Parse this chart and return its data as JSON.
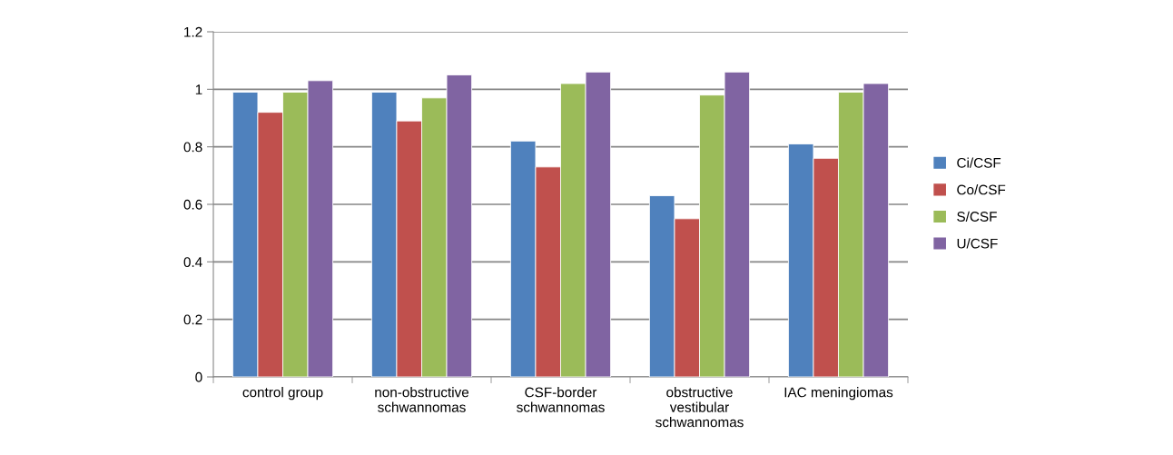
{
  "chart_data": {
    "type": "bar",
    "categories": [
      "control group",
      "non-obstructive\nschwannomas",
      "CSF-border\nschwannomas",
      "obstructive\nvestibular\nschwannomas",
      "IAC meningiomas"
    ],
    "series": [
      {
        "name": "Ci/CSF",
        "color": "#4f81bd",
        "values": [
          0.99,
          0.99,
          0.82,
          0.63,
          0.81
        ]
      },
      {
        "name": "Co/CSF",
        "color": "#c0504d",
        "values": [
          0.92,
          0.89,
          0.73,
          0.55,
          0.76
        ]
      },
      {
        "name": "S/CSF",
        "color": "#9bbb59",
        "values": [
          0.99,
          0.97,
          1.02,
          0.98,
          0.99
        ]
      },
      {
        "name": "U/CSF",
        "color": "#8064a2",
        "values": [
          1.03,
          1.05,
          1.06,
          1.06,
          1.02
        ]
      }
    ],
    "ylim": [
      0,
      1.2
    ],
    "yticks": [
      0,
      0.2,
      0.4,
      0.6,
      0.8,
      1,
      1.2
    ],
    "grid": "y",
    "legend": "right"
  }
}
